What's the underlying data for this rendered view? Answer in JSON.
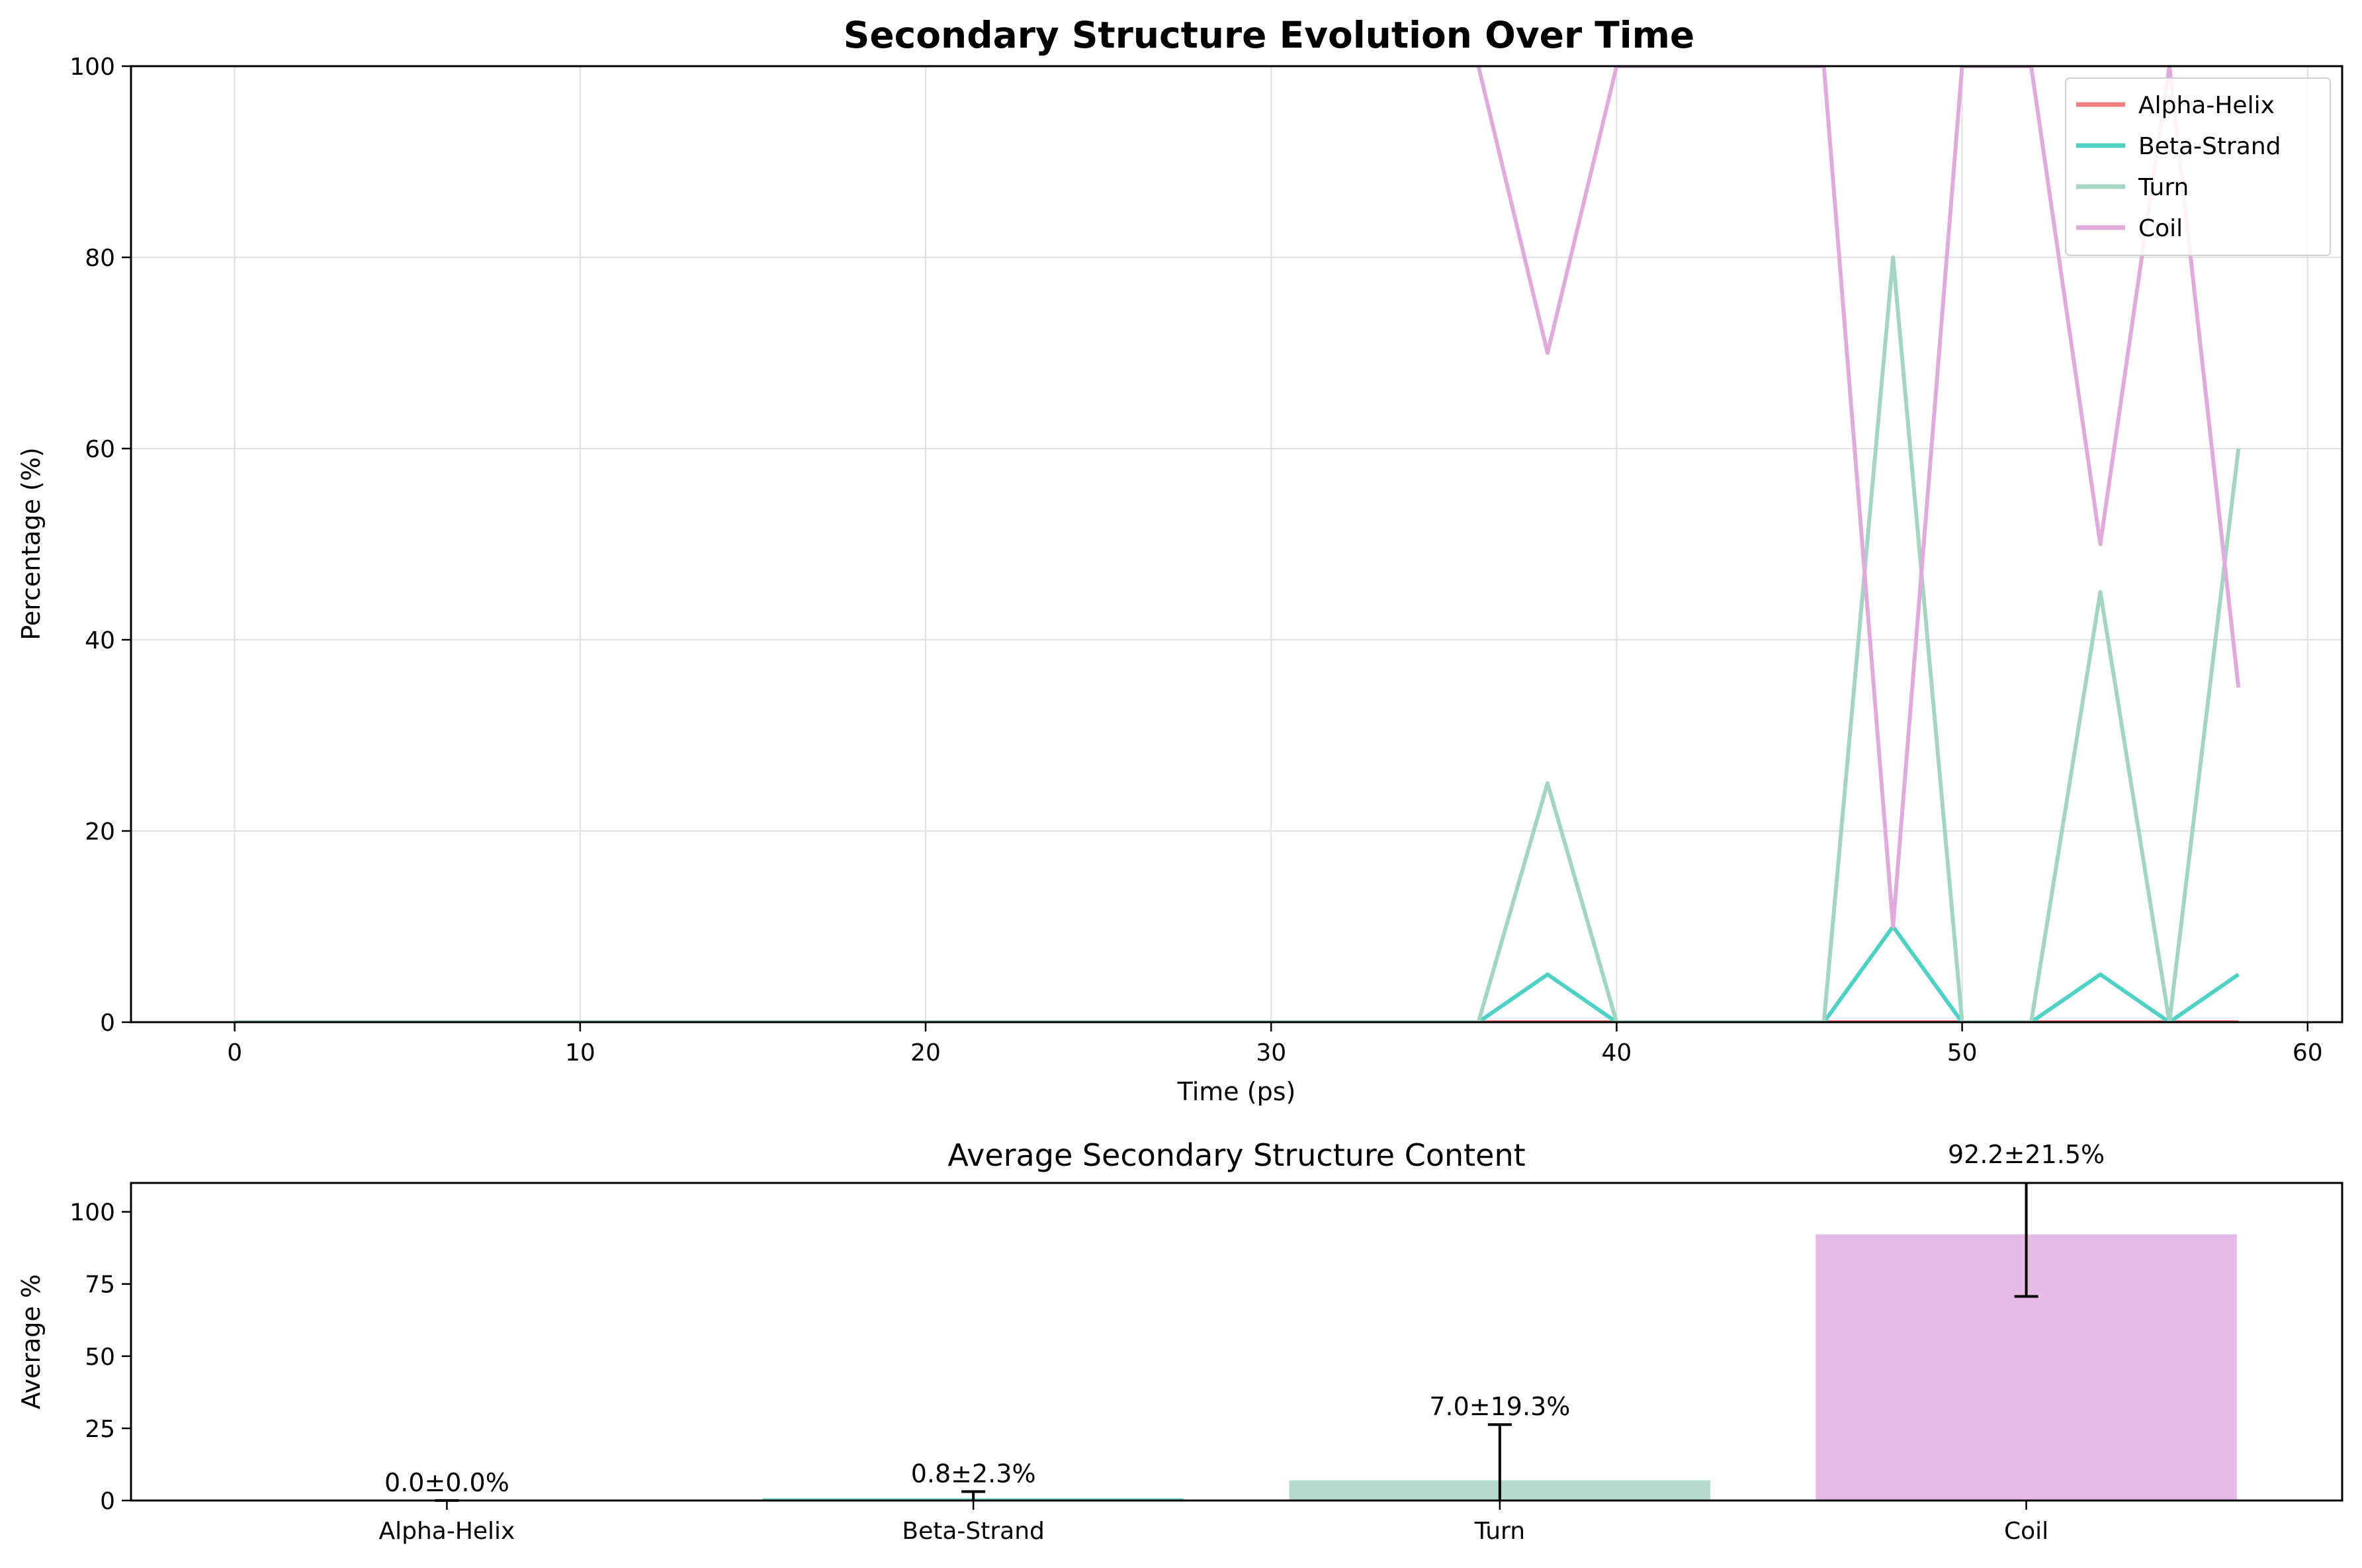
{
  "chart_data": [
    {
      "type": "line",
      "title": "Secondary Structure Evolution Over Time",
      "xlabel": "Time (ps)",
      "ylabel": "Percentage (%)",
      "xlim": [
        -3,
        61
      ],
      "ylim": [
        0,
        100
      ],
      "xticks": [
        0,
        10,
        20,
        30,
        40,
        50,
        60
      ],
      "yticks": [
        0,
        20,
        40,
        60,
        80,
        100
      ],
      "grid": true,
      "legend_position": "top-right",
      "x": [
        0,
        2,
        4,
        6,
        8,
        10,
        12,
        14,
        16,
        18,
        20,
        22,
        24,
        26,
        28,
        30,
        32,
        34,
        36,
        38,
        40,
        42,
        44,
        46,
        48,
        50,
        52,
        54,
        56,
        58
      ],
      "series": [
        {
          "name": "Alpha-Helix",
          "color": "#f08080",
          "values": [
            0,
            0,
            0,
            0,
            0,
            0,
            0,
            0,
            0,
            0,
            0,
            0,
            0,
            0,
            0,
            0,
            0,
            0,
            0,
            0,
            0,
            0,
            0,
            0,
            0,
            0,
            0,
            0,
            0,
            0
          ]
        },
        {
          "name": "Beta-Strand",
          "color": "#4fd1c5",
          "values": [
            0,
            0,
            0,
            0,
            0,
            0,
            0,
            0,
            0,
            0,
            0,
            0,
            0,
            0,
            0,
            0,
            0,
            0,
            0,
            5,
            0,
            0,
            0,
            0,
            10,
            0,
            0,
            5,
            0,
            5
          ]
        },
        {
          "name": "Turn",
          "color": "#a3d5c0",
          "values": [
            0,
            0,
            0,
            0,
            0,
            0,
            0,
            0,
            0,
            0,
            0,
            0,
            0,
            0,
            0,
            0,
            0,
            0,
            0,
            25,
            0,
            0,
            0,
            0,
            80,
            0,
            0,
            45,
            0,
            60
          ]
        },
        {
          "name": "Coil",
          "color": "#e0aadc",
          "values": [
            null,
            null,
            null,
            null,
            null,
            null,
            null,
            null,
            null,
            null,
            null,
            null,
            null,
            null,
            null,
            null,
            null,
            null,
            100,
            70,
            100,
            100,
            100,
            100,
            10,
            100,
            100,
            50,
            100,
            35
          ]
        }
      ]
    },
    {
      "type": "bar",
      "title": "Average Secondary Structure Content",
      "xlabel": "",
      "ylabel": "Average %",
      "ylim": [
        0,
        110
      ],
      "yticks": [
        0,
        25,
        50,
        75,
        100
      ],
      "categories": [
        "Alpha-Helix",
        "Beta-Strand",
        "Turn",
        "Coil"
      ],
      "values": [
        0.0,
        0.8,
        7.0,
        92.2
      ],
      "errors": [
        0.0,
        2.3,
        19.3,
        21.5
      ],
      "labels": [
        "0.0±0.0%",
        "0.8±2.3%",
        "7.0±19.3%",
        "92.2±21.5%"
      ],
      "colors": [
        "#f08080",
        "#4fd1c5",
        "#a3d5c0",
        "#e0aadc"
      ]
    }
  ]
}
